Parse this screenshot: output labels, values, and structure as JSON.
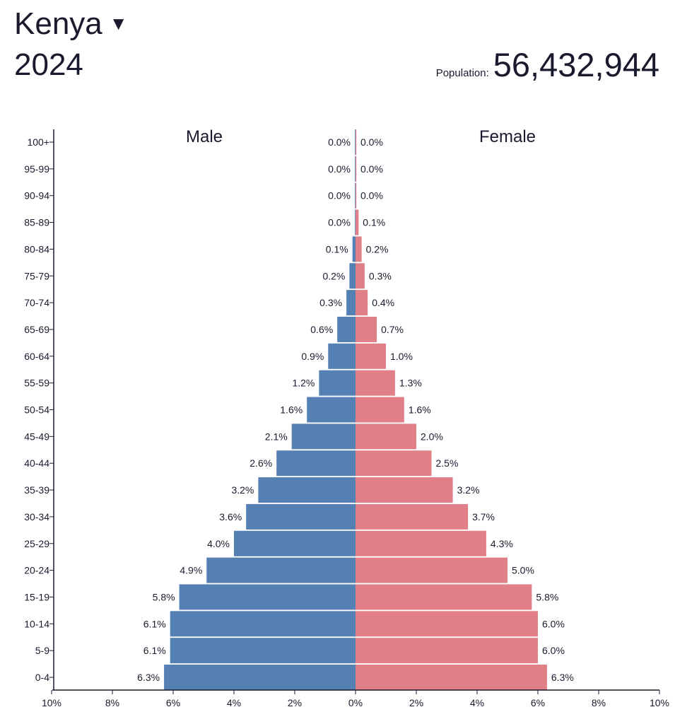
{
  "header": {
    "country": "Kenya",
    "dropdown_icon": "caret-down-icon",
    "year": "2024",
    "population_label": "Population:",
    "population_value": "56,432,944"
  },
  "chart_data": {
    "type": "bar",
    "orientation": "horizontal-population-pyramid",
    "categories": [
      "100+",
      "95-99",
      "90-94",
      "85-89",
      "80-84",
      "75-79",
      "70-74",
      "65-69",
      "60-64",
      "55-59",
      "50-54",
      "45-49",
      "40-44",
      "35-39",
      "30-34",
      "25-29",
      "20-24",
      "15-19",
      "10-14",
      "5-9",
      "0-4"
    ],
    "series": [
      {
        "name": "Male",
        "color": "#5480b3",
        "values": [
          0.0,
          0.0,
          0.0,
          0.0,
          0.1,
          0.2,
          0.3,
          0.6,
          0.9,
          1.2,
          1.6,
          2.1,
          2.6,
          3.2,
          3.6,
          4.0,
          4.9,
          5.8,
          6.1,
          6.1,
          6.3
        ]
      },
      {
        "name": "Female",
        "color": "#e07f88",
        "values": [
          0.0,
          0.0,
          0.0,
          0.1,
          0.2,
          0.3,
          0.4,
          0.7,
          1.0,
          1.3,
          1.6,
          2.0,
          2.5,
          3.2,
          3.7,
          4.3,
          5.0,
          5.8,
          6.0,
          6.0,
          6.3
        ]
      }
    ],
    "xlim": [
      -10,
      10
    ],
    "x_tick_labels": [
      "10%",
      "8%",
      "6%",
      "4%",
      "2%",
      "0%",
      "2%",
      "4%",
      "6%",
      "8%",
      "10%"
    ],
    "unit": "%",
    "grid": false,
    "legend": "series names printed above bars"
  }
}
